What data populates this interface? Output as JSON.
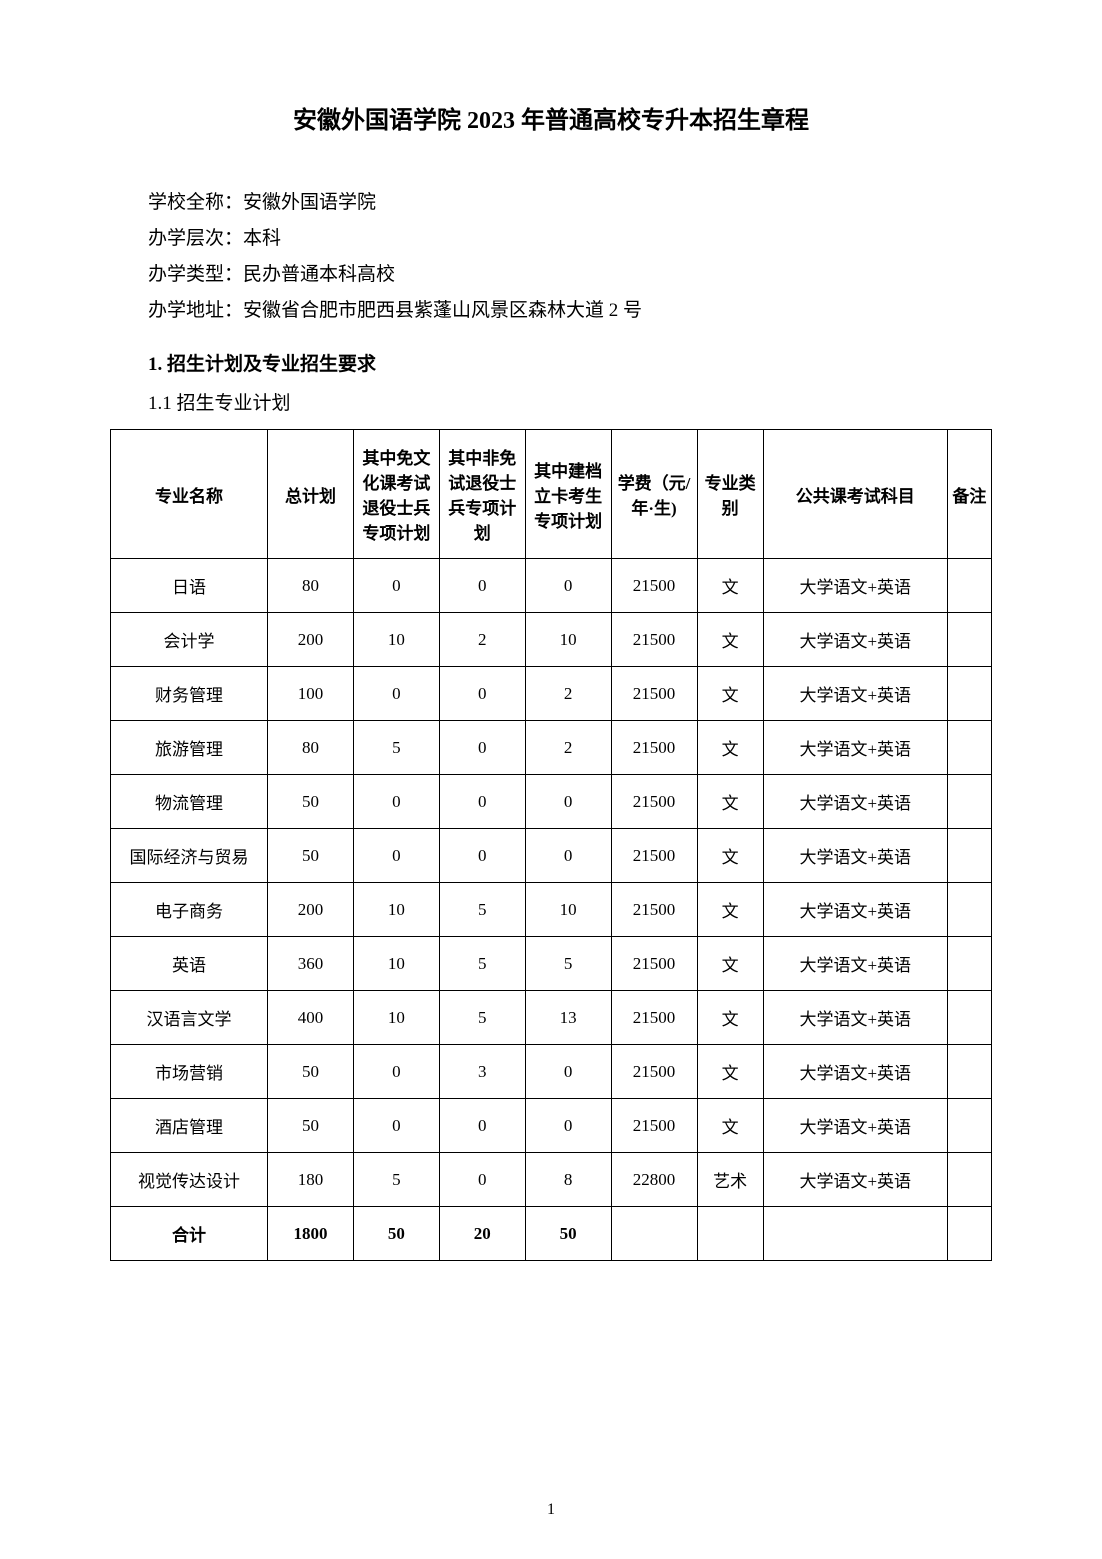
{
  "document": {
    "title": "安徽外国语学院 2023 年普通高校专升本招生章程",
    "info": {
      "school_name_label": "学校全称：",
      "school_name_value": "安徽外国语学院",
      "level_label": "办学层次：",
      "level_value": "本科",
      "type_label": "办学类型：",
      "type_value": "民办普通本科高校",
      "address_label": "办学地址：",
      "address_value": "安徽省合肥市肥西县紫蓬山风景区森林大道 2 号"
    },
    "section1_heading": "1. 招生计划及专业招生要求",
    "section1_1": "1.1 招生专业计划",
    "page_number": "1"
  },
  "table": {
    "headers": {
      "major": "专业名称",
      "total": "总计划",
      "plan1": "其中免文化课考试退役士兵专项计划",
      "plan2": "其中非免试退役士兵专项计划",
      "plan3": "其中建档立卡考生专项计划",
      "fee": "学费（元/年·生)",
      "category": "专业类别",
      "exam": "公共课考试科目",
      "remark": "备注"
    },
    "rows": [
      {
        "major": "日语",
        "total": "80",
        "plan1": "0",
        "plan2": "0",
        "plan3": "0",
        "fee": "21500",
        "category": "文",
        "exam": "大学语文+英语",
        "remark": ""
      },
      {
        "major": "会计学",
        "total": "200",
        "plan1": "10",
        "plan2": "2",
        "plan3": "10",
        "fee": "21500",
        "category": "文",
        "exam": "大学语文+英语",
        "remark": ""
      },
      {
        "major": "财务管理",
        "total": "100",
        "plan1": "0",
        "plan2": "0",
        "plan3": "2",
        "fee": "21500",
        "category": "文",
        "exam": "大学语文+英语",
        "remark": ""
      },
      {
        "major": "旅游管理",
        "total": "80",
        "plan1": "5",
        "plan2": "0",
        "plan3": "2",
        "fee": "21500",
        "category": "文",
        "exam": "大学语文+英语",
        "remark": ""
      },
      {
        "major": "物流管理",
        "total": "50",
        "plan1": "0",
        "plan2": "0",
        "plan3": "0",
        "fee": "21500",
        "category": "文",
        "exam": "大学语文+英语",
        "remark": ""
      },
      {
        "major": "国际经济与贸易",
        "total": "50",
        "plan1": "0",
        "plan2": "0",
        "plan3": "0",
        "fee": "21500",
        "category": "文",
        "exam": "大学语文+英语",
        "remark": ""
      },
      {
        "major": "电子商务",
        "total": "200",
        "plan1": "10",
        "plan2": "5",
        "plan3": "10",
        "fee": "21500",
        "category": "文",
        "exam": "大学语文+英语",
        "remark": ""
      },
      {
        "major": "英语",
        "total": "360",
        "plan1": "10",
        "plan2": "5",
        "plan3": "5",
        "fee": "21500",
        "category": "文",
        "exam": "大学语文+英语",
        "remark": ""
      },
      {
        "major": "汉语言文学",
        "total": "400",
        "plan1": "10",
        "plan2": "5",
        "plan3": "13",
        "fee": "21500",
        "category": "文",
        "exam": "大学语文+英语",
        "remark": ""
      },
      {
        "major": "市场营销",
        "total": "50",
        "plan1": "0",
        "plan2": "3",
        "plan3": "0",
        "fee": "21500",
        "category": "文",
        "exam": "大学语文+英语",
        "remark": ""
      },
      {
        "major": "酒店管理",
        "total": "50",
        "plan1": "0",
        "plan2": "0",
        "plan3": "0",
        "fee": "21500",
        "category": "文",
        "exam": "大学语文+英语",
        "remark": ""
      },
      {
        "major": "视觉传达设计",
        "total": "180",
        "plan1": "5",
        "plan2": "0",
        "plan3": "8",
        "fee": "22800",
        "category": "艺术",
        "exam": "大学语文+英语",
        "remark": ""
      }
    ],
    "total_row": {
      "major": "合计",
      "total": "1800",
      "plan1": "50",
      "plan2": "20",
      "plan3": "50",
      "fee": "",
      "category": "",
      "exam": "",
      "remark": ""
    },
    "styling": {
      "border_color": "#000000",
      "background_color": "#ffffff",
      "font_size": 17,
      "header_font_weight": "bold",
      "cell_padding": "14px 4px",
      "text_align": "center",
      "column_widths": {
        "major": 128,
        "total": 70,
        "plan1": 70,
        "plan2": 70,
        "plan3": 70,
        "fee": 70,
        "category": 54,
        "exam": 150,
        "remark": 36
      }
    }
  }
}
